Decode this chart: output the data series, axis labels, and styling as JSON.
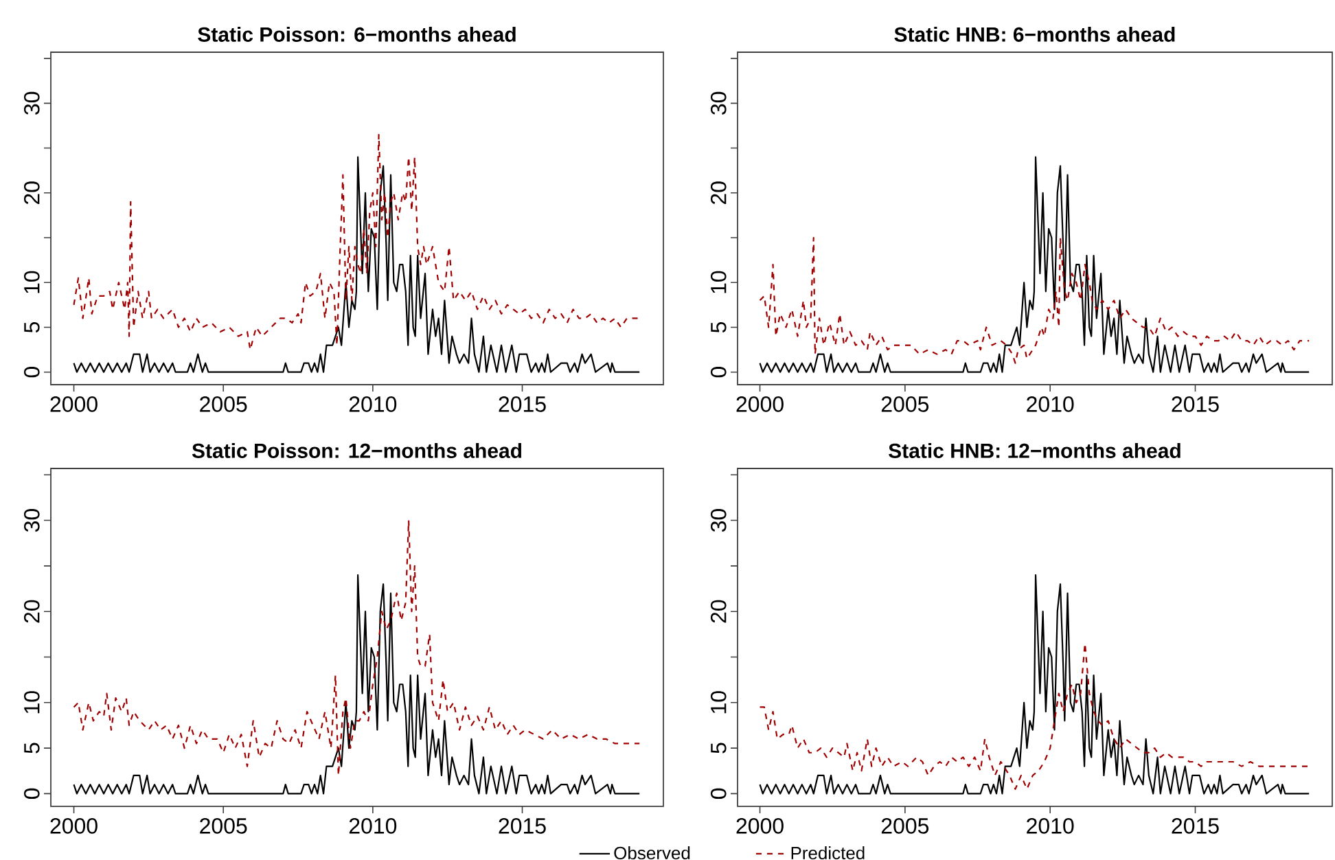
{
  "chart_data": [
    {
      "type": "line",
      "title": "Static Poisson: 6−months ahead",
      "xlim": [
        1999.23,
        2019.72
      ],
      "ylim": [
        -1.4,
        35.7
      ],
      "xticks": [
        2000,
        2005,
        2010,
        2015
      ],
      "yticks": [
        0,
        5,
        10,
        {
          "value": 15,
          "label": null
        },
        20,
        {
          "value": 25,
          "label": null
        },
        30,
        {
          "value": 35,
          "label": null
        }
      ],
      "grid": false,
      "series": [
        {
          "color": "#000000",
          "line_style": "solid",
          "x": [
            2000.0,
            2000.1,
            2000.25,
            2000.4,
            2000.55,
            2000.7,
            2000.85,
            2001.0,
            2001.15,
            2001.3,
            2001.45,
            2001.6,
            2001.75,
            2001.85,
            2002.0,
            2002.2,
            2002.3,
            2002.45,
            2002.55,
            2002.7,
            2002.85,
            2003.0,
            2003.15,
            2003.3,
            2003.4,
            2003.8,
            2003.9,
            2004.0,
            2004.15,
            2004.3,
            2004.4,
            2004.5,
            2007.0,
            2007.08,
            2007.17,
            2007.6,
            2007.7,
            2007.85,
            2007.95,
            2008.05,
            2008.15,
            2008.25,
            2008.35,
            2008.45,
            2008.65,
            2008.75,
            2008.85,
            2008.95,
            2009.1,
            2009.2,
            2009.3,
            2009.4,
            2009.45,
            2009.5,
            2009.65,
            2009.75,
            2009.85,
            2009.95,
            2010.05,
            2010.15,
            2010.25,
            2010.35,
            2010.45,
            2010.5,
            2010.6,
            2010.7,
            2010.8,
            2010.9,
            2011.0,
            2011.1,
            2011.18,
            2011.26,
            2011.35,
            2011.42,
            2011.5,
            2011.6,
            2011.75,
            2011.85,
            2012.0,
            2012.1,
            2012.2,
            2012.3,
            2012.4,
            2012.55,
            2012.65,
            2012.8,
            2012.9,
            2013.05,
            2013.2,
            2013.3,
            2013.4,
            2013.55,
            2013.7,
            2013.8,
            2013.95,
            2014.15,
            2014.3,
            2014.45,
            2014.65,
            2014.8,
            2014.9,
            2015.0,
            2015.15,
            2015.3,
            2015.45,
            2015.55,
            2015.65,
            2015.75,
            2015.85,
            2015.95,
            2016.3,
            2016.5,
            2016.6,
            2016.75,
            2016.85,
            2017.0,
            2017.1,
            2017.3,
            2017.45,
            2017.85,
            2017.95,
            2018.0,
            2018.1,
            2018.92
          ],
          "values": [
            1,
            0,
            1,
            0,
            1,
            0,
            1,
            0,
            1,
            0,
            1,
            0,
            1,
            0,
            2,
            2,
            0,
            2,
            0,
            1,
            0,
            1,
            0,
            1,
            0,
            0,
            1,
            0,
            2,
            0,
            1,
            0,
            0,
            1,
            0,
            0,
            1,
            1,
            0,
            1,
            0,
            2,
            0,
            3,
            3,
            4,
            5,
            3,
            10,
            5,
            8,
            7,
            9,
            24,
            11,
            20,
            9,
            16,
            15,
            7,
            20,
            23,
            14,
            8,
            22,
            10,
            9,
            12,
            12,
            9,
            3,
            13,
            5,
            4,
            13,
            6,
            11,
            2,
            7,
            4,
            6,
            2,
            8,
            1,
            4,
            2,
            1,
            2,
            1,
            6,
            2,
            0,
            4,
            0,
            3,
            0,
            3,
            0,
            3,
            0,
            2,
            2,
            2,
            0,
            1,
            0,
            1,
            0,
            2,
            0,
            1,
            1,
            0,
            1,
            0,
            2,
            1,
            2,
            0,
            1,
            0,
            1,
            0,
            0
          ]
        },
        {
          "color": "#a00000",
          "line_style": "dashed",
          "x": [
            2000.0,
            2000.15,
            2000.3,
            2000.5,
            2000.6,
            2000.8,
            2001.0,
            2001.2,
            2001.3,
            2001.5,
            2001.7,
            2001.8,
            2001.85,
            2001.9,
            2002.0,
            2002.15,
            2002.3,
            2002.5,
            2002.6,
            2002.8,
            2003.0,
            2003.3,
            2003.5,
            2003.7,
            2003.9,
            2004.1,
            2004.3,
            2004.6,
            2004.9,
            2005.2,
            2005.5,
            2005.8,
            2005.9,
            2006.1,
            2006.3,
            2006.6,
            2006.9,
            2007.1,
            2007.3,
            2007.5,
            2007.6,
            2007.75,
            2007.9,
            2008.1,
            2008.25,
            2008.4,
            2008.55,
            2008.7,
            2008.8,
            2008.9,
            2009.0,
            2009.1,
            2009.2,
            2009.3,
            2009.4,
            2009.5,
            2009.6,
            2009.7,
            2009.8,
            2009.9,
            2010.0,
            2010.1,
            2010.2,
            2010.3,
            2010.4,
            2010.5,
            2010.6,
            2010.7,
            2010.85,
            2011.0,
            2011.1,
            2011.2,
            2011.3,
            2011.4,
            2011.5,
            2011.6,
            2011.7,
            2011.8,
            2011.9,
            2012.0,
            2012.2,
            2012.4,
            2012.55,
            2012.7,
            2012.9,
            2013.1,
            2013.3,
            2013.5,
            2013.7,
            2013.9,
            2014.1,
            2014.3,
            2014.5,
            2014.7,
            2014.9,
            2015.1,
            2015.3,
            2015.5,
            2015.7,
            2015.9,
            2016.1,
            2016.3,
            2016.5,
            2016.7,
            2016.9,
            2017.1,
            2017.3,
            2017.5,
            2017.7,
            2017.9,
            2018.1,
            2018.3,
            2018.5,
            2018.92
          ],
          "values": [
            7.5,
            10.5,
            6,
            10.5,
            6.5,
            8.5,
            8.5,
            9,
            7,
            10,
            7,
            10,
            4,
            19,
            5,
            9,
            6,
            9,
            6,
            7,
            6,
            7,
            5,
            6,
            4.5,
            6,
            5,
            5.5,
            4.5,
            5,
            4,
            4.5,
            2.5,
            5,
            4,
            5,
            6,
            6,
            5.5,
            6.5,
            5.5,
            10,
            8.5,
            9,
            11,
            6,
            10,
            9,
            3,
            13,
            22,
            8,
            14,
            8,
            14,
            12,
            11,
            16,
            11,
            18,
            20,
            14,
            26.5,
            17,
            20,
            15,
            19,
            20,
            17,
            20,
            19,
            24,
            18,
            24,
            14,
            12,
            14,
            12,
            13,
            14,
            10,
            9,
            14,
            8,
            9,
            8,
            9,
            7,
            8.5,
            7,
            8,
            6.5,
            7.5,
            7,
            6.5,
            7,
            6,
            6.5,
            5.5,
            7,
            6,
            6.5,
            5.5,
            7,
            6,
            6,
            6.5,
            5.5,
            6,
            5.5,
            6,
            5,
            6,
            6
          ]
        }
      ]
    },
    {
      "type": "line",
      "title": "Static HNB: 6−months ahead",
      "xlim": [
        1999.23,
        2019.72
      ],
      "ylim": [
        -1.4,
        35.7
      ],
      "xticks": [
        2000,
        2005,
        2010,
        2015
      ],
      "yticks": [
        0,
        5,
        10,
        {
          "value": 15,
          "label": null
        },
        20,
        {
          "value": 25,
          "label": null
        },
        30,
        {
          "value": 35,
          "label": null
        }
      ],
      "grid": false,
      "series": [
        {
          "color": "#000000",
          "line_style": "solid",
          "x": [
            2000.0,
            2000.1,
            2000.25,
            2000.4,
            2000.55,
            2000.7,
            2000.85,
            2001.0,
            2001.15,
            2001.3,
            2001.45,
            2001.6,
            2001.75,
            2001.85,
            2002.0,
            2002.2,
            2002.3,
            2002.45,
            2002.55,
            2002.7,
            2002.85,
            2003.0,
            2003.15,
            2003.3,
            2003.4,
            2003.8,
            2003.9,
            2004.0,
            2004.15,
            2004.3,
            2004.4,
            2004.5,
            2007.0,
            2007.08,
            2007.17,
            2007.6,
            2007.7,
            2007.85,
            2007.95,
            2008.05,
            2008.15,
            2008.25,
            2008.35,
            2008.45,
            2008.65,
            2008.75,
            2008.85,
            2008.95,
            2009.1,
            2009.2,
            2009.3,
            2009.4,
            2009.45,
            2009.5,
            2009.65,
            2009.75,
            2009.85,
            2009.95,
            2010.05,
            2010.15,
            2010.25,
            2010.35,
            2010.45,
            2010.5,
            2010.6,
            2010.7,
            2010.8,
            2010.9,
            2011.0,
            2011.1,
            2011.18,
            2011.26,
            2011.35,
            2011.42,
            2011.5,
            2011.6,
            2011.75,
            2011.85,
            2012.0,
            2012.1,
            2012.2,
            2012.3,
            2012.4,
            2012.55,
            2012.65,
            2012.8,
            2012.9,
            2013.05,
            2013.2,
            2013.3,
            2013.4,
            2013.55,
            2013.7,
            2013.8,
            2013.95,
            2014.15,
            2014.3,
            2014.45,
            2014.65,
            2014.8,
            2014.9,
            2015.0,
            2015.15,
            2015.3,
            2015.45,
            2015.55,
            2015.65,
            2015.75,
            2015.85,
            2015.95,
            2016.3,
            2016.5,
            2016.6,
            2016.75,
            2016.85,
            2017.0,
            2017.1,
            2017.3,
            2017.45,
            2017.85,
            2017.95,
            2018.0,
            2018.1,
            2018.92
          ],
          "values": [
            1,
            0,
            1,
            0,
            1,
            0,
            1,
            0,
            1,
            0,
            1,
            0,
            1,
            0,
            2,
            2,
            0,
            2,
            0,
            1,
            0,
            1,
            0,
            1,
            0,
            0,
            1,
            0,
            2,
            0,
            1,
            0,
            0,
            1,
            0,
            0,
            1,
            1,
            0,
            1,
            0,
            2,
            0,
            3,
            3,
            4,
            5,
            3,
            10,
            5,
            8,
            7,
            9,
            24,
            11,
            20,
            9,
            16,
            15,
            7,
            20,
            23,
            14,
            8,
            22,
            10,
            9,
            12,
            12,
            9,
            3,
            13,
            5,
            4,
            13,
            6,
            11,
            2,
            7,
            4,
            6,
            2,
            8,
            1,
            4,
            2,
            1,
            2,
            1,
            6,
            2,
            0,
            4,
            0,
            3,
            0,
            3,
            0,
            3,
            0,
            2,
            2,
            2,
            0,
            1,
            0,
            1,
            0,
            2,
            0,
            1,
            1,
            0,
            1,
            0,
            2,
            1,
            2,
            0,
            1,
            0,
            1,
            0,
            0
          ]
        },
        {
          "color": "#a00000",
          "line_style": "dashed",
          "x": [
            2000.0,
            2000.15,
            2000.3,
            2000.45,
            2000.55,
            2000.7,
            2000.9,
            2001.1,
            2001.3,
            2001.5,
            2001.6,
            2001.75,
            2001.85,
            2001.9,
            2002.05,
            2002.2,
            2002.4,
            2002.6,
            2002.75,
            2002.9,
            2003.1,
            2003.3,
            2003.5,
            2003.7,
            2003.8,
            2004.0,
            2004.2,
            2004.4,
            2004.6,
            2004.9,
            2005.2,
            2005.5,
            2005.8,
            2006.1,
            2006.4,
            2006.6,
            2006.8,
            2007.0,
            2007.2,
            2007.5,
            2007.6,
            2007.8,
            2008.0,
            2008.3,
            2008.5,
            2008.7,
            2008.8,
            2008.9,
            2009.1,
            2009.2,
            2009.4,
            2009.5,
            2009.7,
            2009.8,
            2009.95,
            2010.1,
            2010.2,
            2010.3,
            2010.35,
            2010.5,
            2010.6,
            2010.75,
            2010.9,
            2011.05,
            2011.2,
            2011.35,
            2011.45,
            2011.6,
            2011.8,
            2012.0,
            2012.2,
            2012.4,
            2012.6,
            2012.8,
            2013.0,
            2013.2,
            2013.4,
            2013.6,
            2013.8,
            2014.0,
            2014.2,
            2014.4,
            2014.6,
            2014.8,
            2015.0,
            2015.2,
            2015.4,
            2015.6,
            2015.8,
            2016.0,
            2016.2,
            2016.4,
            2016.6,
            2016.8,
            2017.0,
            2017.2,
            2017.4,
            2017.6,
            2017.8,
            2018.0,
            2018.2,
            2018.4,
            2018.6,
            2018.92
          ],
          "values": [
            8,
            8.5,
            5,
            12,
            4,
            6.5,
            5,
            7,
            4,
            8,
            5,
            6,
            15,
            2,
            6,
            3,
            5.5,
            3,
            6.5,
            3,
            4.5,
            3,
            3.5,
            2.5,
            4.5,
            3,
            4,
            2.5,
            3,
            3,
            3,
            2,
            2.5,
            2,
            2.5,
            2,
            3.5,
            3.5,
            3,
            3.5,
            2.5,
            5,
            3,
            3.5,
            3,
            2,
            1,
            2.5,
            3,
            1.5,
            2.5,
            3,
            5,
            4,
            7,
            6,
            9,
            5,
            15,
            9,
            8,
            11,
            10,
            8,
            12,
            10,
            8,
            7,
            8,
            7,
            8,
            6,
            7,
            6,
            5.5,
            5,
            5,
            4,
            6,
            4.5,
            5,
            4,
            4.5,
            4,
            4,
            3,
            4,
            3.5,
            3.5,
            4,
            3.5,
            4.5,
            3.5,
            3.5,
            3,
            4,
            3,
            3.5,
            3.5,
            3,
            3.5,
            2.5,
            3.5,
            3.5
          ]
        }
      ]
    },
    {
      "type": "line",
      "title": "Static Poisson: 12−months ahead",
      "xlim": [
        1999.23,
        2019.72
      ],
      "ylim": [
        -1.4,
        35.7
      ],
      "xticks": [
        2000,
        2005,
        2010,
        2015
      ],
      "yticks": [
        0,
        5,
        10,
        {
          "value": 15,
          "label": null
        },
        20,
        {
          "value": 25,
          "label": null
        },
        30,
        {
          "value": 35,
          "label": null
        }
      ],
      "grid": false,
      "series": [
        {
          "color": "#000000",
          "line_style": "solid",
          "x": [
            2000.0,
            2000.1,
            2000.25,
            2000.4,
            2000.55,
            2000.7,
            2000.85,
            2001.0,
            2001.15,
            2001.3,
            2001.45,
            2001.6,
            2001.75,
            2001.85,
            2002.0,
            2002.2,
            2002.3,
            2002.45,
            2002.55,
            2002.7,
            2002.85,
            2003.0,
            2003.15,
            2003.3,
            2003.4,
            2003.8,
            2003.9,
            2004.0,
            2004.15,
            2004.3,
            2004.4,
            2004.5,
            2007.0,
            2007.08,
            2007.17,
            2007.6,
            2007.7,
            2007.85,
            2007.95,
            2008.05,
            2008.15,
            2008.25,
            2008.35,
            2008.45,
            2008.65,
            2008.75,
            2008.85,
            2008.95,
            2009.1,
            2009.2,
            2009.3,
            2009.4,
            2009.45,
            2009.5,
            2009.65,
            2009.75,
            2009.85,
            2009.95,
            2010.05,
            2010.15,
            2010.25,
            2010.35,
            2010.45,
            2010.5,
            2010.6,
            2010.7,
            2010.8,
            2010.9,
            2011.0,
            2011.1,
            2011.18,
            2011.26,
            2011.35,
            2011.42,
            2011.5,
            2011.6,
            2011.75,
            2011.85,
            2012.0,
            2012.1,
            2012.2,
            2012.3,
            2012.4,
            2012.55,
            2012.65,
            2012.8,
            2012.9,
            2013.05,
            2013.2,
            2013.3,
            2013.4,
            2013.55,
            2013.7,
            2013.8,
            2013.95,
            2014.15,
            2014.3,
            2014.45,
            2014.65,
            2014.8,
            2014.9,
            2015.0,
            2015.15,
            2015.3,
            2015.45,
            2015.55,
            2015.65,
            2015.75,
            2015.85,
            2015.95,
            2016.3,
            2016.5,
            2016.6,
            2016.75,
            2016.85,
            2017.0,
            2017.1,
            2017.3,
            2017.45,
            2017.85,
            2017.95,
            2018.0,
            2018.1,
            2018.92
          ],
          "values": [
            1,
            0,
            1,
            0,
            1,
            0,
            1,
            0,
            1,
            0,
            1,
            0,
            1,
            0,
            2,
            2,
            0,
            2,
            0,
            1,
            0,
            1,
            0,
            1,
            0,
            0,
            1,
            0,
            2,
            0,
            1,
            0,
            0,
            1,
            0,
            0,
            1,
            1,
            0,
            1,
            0,
            2,
            0,
            3,
            3,
            4,
            5,
            3,
            10,
            5,
            8,
            7,
            9,
            24,
            11,
            20,
            9,
            16,
            15,
            7,
            20,
            23,
            14,
            8,
            22,
            10,
            9,
            12,
            12,
            9,
            3,
            13,
            5,
            4,
            13,
            6,
            11,
            2,
            7,
            4,
            6,
            2,
            8,
            1,
            4,
            2,
            1,
            2,
            1,
            6,
            2,
            0,
            4,
            0,
            3,
            0,
            3,
            0,
            3,
            0,
            2,
            2,
            2,
            0,
            1,
            0,
            1,
            0,
            2,
            0,
            1,
            1,
            0,
            1,
            0,
            2,
            1,
            2,
            0,
            1,
            0,
            1,
            0,
            0
          ]
        },
        {
          "color": "#a00000",
          "line_style": "dashed",
          "x": [
            2000.0,
            2000.15,
            2000.3,
            2000.5,
            2000.65,
            2000.85,
            2001.0,
            2001.1,
            2001.25,
            2001.4,
            2001.6,
            2001.75,
            2001.85,
            2002.0,
            2002.2,
            2002.5,
            2002.7,
            2002.9,
            2003.1,
            2003.3,
            2003.5,
            2003.7,
            2003.9,
            2004.1,
            2004.3,
            2004.5,
            2004.8,
            2005.0,
            2005.2,
            2005.4,
            2005.6,
            2005.8,
            2006.0,
            2006.2,
            2006.4,
            2006.6,
            2006.8,
            2007.0,
            2007.2,
            2007.4,
            2007.6,
            2007.8,
            2008.0,
            2008.2,
            2008.4,
            2008.6,
            2008.75,
            2008.85,
            2009.0,
            2009.1,
            2009.25,
            2009.4,
            2009.55,
            2009.7,
            2009.85,
            2010.0,
            2010.15,
            2010.3,
            2010.45,
            2010.6,
            2010.8,
            2010.95,
            2011.1,
            2011.2,
            2011.3,
            2011.4,
            2011.5,
            2011.6,
            2011.75,
            2011.9,
            2012.0,
            2012.2,
            2012.35,
            2012.5,
            2012.7,
            2012.9,
            2013.1,
            2013.3,
            2013.5,
            2013.7,
            2013.9,
            2014.1,
            2014.3,
            2014.5,
            2014.7,
            2014.9,
            2015.1,
            2015.4,
            2015.7,
            2016.0,
            2016.3,
            2016.6,
            2016.9,
            2017.2,
            2017.5,
            2017.8,
            2018.1,
            2018.5,
            2018.92
          ],
          "values": [
            9.5,
            10,
            7,
            10,
            8,
            9,
            8.5,
            11,
            7,
            10.5,
            9,
            10.5,
            7.5,
            9,
            8,
            7,
            8,
            7,
            7.5,
            6,
            7.5,
            5,
            7.5,
            5.5,
            7,
            6,
            6,
            4.5,
            6.5,
            5,
            6.5,
            3,
            8,
            4,
            5.5,
            5,
            8,
            6,
            5.5,
            7,
            5,
            9,
            7.5,
            6,
            9,
            5,
            13,
            2,
            9,
            10.5,
            5,
            8,
            8,
            9,
            8,
            12,
            15,
            20,
            18,
            19,
            22,
            19,
            21,
            30,
            20,
            25,
            15,
            14,
            14,
            17.5,
            10,
            8,
            12.5,
            9,
            10,
            7,
            9.5,
            7.5,
            8.5,
            7,
            9.5,
            7,
            8,
            6.5,
            7.5,
            6.5,
            7,
            6.5,
            6,
            7,
            6,
            6.5,
            6,
            6.5,
            6,
            6,
            5.5,
            5.5,
            5.5
          ]
        }
      ]
    },
    {
      "type": "line",
      "title": "Static HNB: 12−months ahead",
      "xlim": [
        1999.23,
        2019.72
      ],
      "ylim": [
        -1.4,
        35.7
      ],
      "xticks": [
        2000,
        2005,
        2010,
        2015
      ],
      "yticks": [
        0,
        5,
        10,
        {
          "value": 15,
          "label": null
        },
        20,
        {
          "value": 25,
          "label": null
        },
        30,
        {
          "value": 35,
          "label": null
        }
      ],
      "grid": false,
      "legend": "bottom",
      "series": [
        {
          "name": "Observed",
          "color": "#000000",
          "line_style": "solid",
          "x": [
            2000.0,
            2000.1,
            2000.25,
            2000.4,
            2000.55,
            2000.7,
            2000.85,
            2001.0,
            2001.15,
            2001.3,
            2001.45,
            2001.6,
            2001.75,
            2001.85,
            2002.0,
            2002.2,
            2002.3,
            2002.45,
            2002.55,
            2002.7,
            2002.85,
            2003.0,
            2003.15,
            2003.3,
            2003.4,
            2003.8,
            2003.9,
            2004.0,
            2004.15,
            2004.3,
            2004.4,
            2004.5,
            2007.0,
            2007.08,
            2007.17,
            2007.6,
            2007.7,
            2007.85,
            2007.95,
            2008.05,
            2008.15,
            2008.25,
            2008.35,
            2008.45,
            2008.65,
            2008.75,
            2008.85,
            2008.95,
            2009.1,
            2009.2,
            2009.3,
            2009.4,
            2009.45,
            2009.5,
            2009.65,
            2009.75,
            2009.85,
            2009.95,
            2010.05,
            2010.15,
            2010.25,
            2010.35,
            2010.45,
            2010.5,
            2010.6,
            2010.7,
            2010.8,
            2010.9,
            2011.0,
            2011.1,
            2011.18,
            2011.26,
            2011.35,
            2011.42,
            2011.5,
            2011.6,
            2011.75,
            2011.85,
            2012.0,
            2012.1,
            2012.2,
            2012.3,
            2012.4,
            2012.55,
            2012.65,
            2012.8,
            2012.9,
            2013.05,
            2013.2,
            2013.3,
            2013.4,
            2013.55,
            2013.7,
            2013.8,
            2013.95,
            2014.15,
            2014.3,
            2014.45,
            2014.65,
            2014.8,
            2014.9,
            2015.0,
            2015.15,
            2015.3,
            2015.45,
            2015.55,
            2015.65,
            2015.75,
            2015.85,
            2015.95,
            2016.3,
            2016.5,
            2016.6,
            2016.75,
            2016.85,
            2017.0,
            2017.1,
            2017.3,
            2017.45,
            2017.85,
            2017.95,
            2018.0,
            2018.1,
            2018.92
          ],
          "values": [
            1,
            0,
            1,
            0,
            1,
            0,
            1,
            0,
            1,
            0,
            1,
            0,
            1,
            0,
            2,
            2,
            0,
            2,
            0,
            1,
            0,
            1,
            0,
            1,
            0,
            0,
            1,
            0,
            2,
            0,
            1,
            0,
            0,
            1,
            0,
            0,
            1,
            1,
            0,
            1,
            0,
            2,
            0,
            3,
            3,
            4,
            5,
            3,
            10,
            5,
            8,
            7,
            9,
            24,
            11,
            20,
            9,
            16,
            15,
            7,
            20,
            23,
            14,
            8,
            22,
            10,
            9,
            12,
            12,
            9,
            3,
            13,
            5,
            4,
            13,
            6,
            11,
            2,
            7,
            4,
            6,
            2,
            8,
            1,
            4,
            2,
            1,
            2,
            1,
            6,
            2,
            0,
            4,
            0,
            3,
            0,
            3,
            0,
            3,
            0,
            2,
            2,
            2,
            0,
            1,
            0,
            1,
            0,
            2,
            0,
            1,
            1,
            0,
            1,
            0,
            2,
            1,
            2,
            0,
            1,
            0,
            1,
            0,
            0
          ]
        },
        {
          "name": "Predicted",
          "color": "#a00000",
          "line_style": "dashed",
          "x": [
            2000.0,
            2000.15,
            2000.3,
            2000.45,
            2000.6,
            2000.8,
            2001.0,
            2001.1,
            2001.3,
            2001.5,
            2001.7,
            2001.9,
            2002.1,
            2002.3,
            2002.5,
            2002.7,
            2002.9,
            2003.0,
            2003.2,
            2003.35,
            2003.5,
            2003.7,
            2003.85,
            2004.0,
            2004.2,
            2004.4,
            2004.6,
            2004.9,
            2005.1,
            2005.4,
            2005.6,
            2005.8,
            2006.0,
            2006.2,
            2006.4,
            2006.6,
            2006.8,
            2007.0,
            2007.2,
            2007.4,
            2007.6,
            2007.75,
            2007.9,
            2008.1,
            2008.3,
            2008.6,
            2008.8,
            2009.0,
            2009.2,
            2009.4,
            2009.6,
            2009.8,
            2010.0,
            2010.1,
            2010.3,
            2010.45,
            2010.6,
            2010.75,
            2010.9,
            2011.05,
            2011.2,
            2011.35,
            2011.5,
            2011.65,
            2011.8,
            2012.0,
            2012.2,
            2012.4,
            2012.6,
            2012.8,
            2013.0,
            2013.2,
            2013.4,
            2013.6,
            2013.8,
            2014.0,
            2014.2,
            2014.4,
            2014.6,
            2014.8,
            2015.0,
            2015.2,
            2015.4,
            2015.7,
            2016.0,
            2016.3,
            2016.6,
            2016.9,
            2017.2,
            2017.5,
            2017.8,
            2018.2,
            2018.6,
            2018.92
          ],
          "values": [
            9.5,
            9.5,
            7,
            9,
            6,
            6.5,
            6.5,
            7.5,
            5,
            6,
            4.5,
            4.5,
            5,
            4,
            5,
            4.5,
            4,
            5.5,
            2.5,
            4.5,
            2.5,
            6,
            3,
            5,
            3,
            4,
            3,
            3.5,
            3,
            4,
            3.5,
            2,
            3,
            3.5,
            3,
            4,
            3.5,
            4,
            3,
            4,
            2.5,
            6,
            4,
            2,
            3.5,
            2,
            0.5,
            2,
            0.5,
            2,
            2.5,
            3.5,
            5,
            7,
            11,
            9,
            11,
            12,
            10,
            11,
            16.5,
            11,
            9,
            8,
            7.5,
            8,
            6,
            5,
            6,
            5.5,
            5,
            4.5,
            4.5,
            5,
            4,
            4.5,
            4,
            4,
            4,
            3.5,
            3.5,
            3,
            3.5,
            3.5,
            3.5,
            3.5,
            3,
            3.5,
            3,
            3,
            3,
            3,
            3,
            3
          ]
        }
      ]
    }
  ]
}
